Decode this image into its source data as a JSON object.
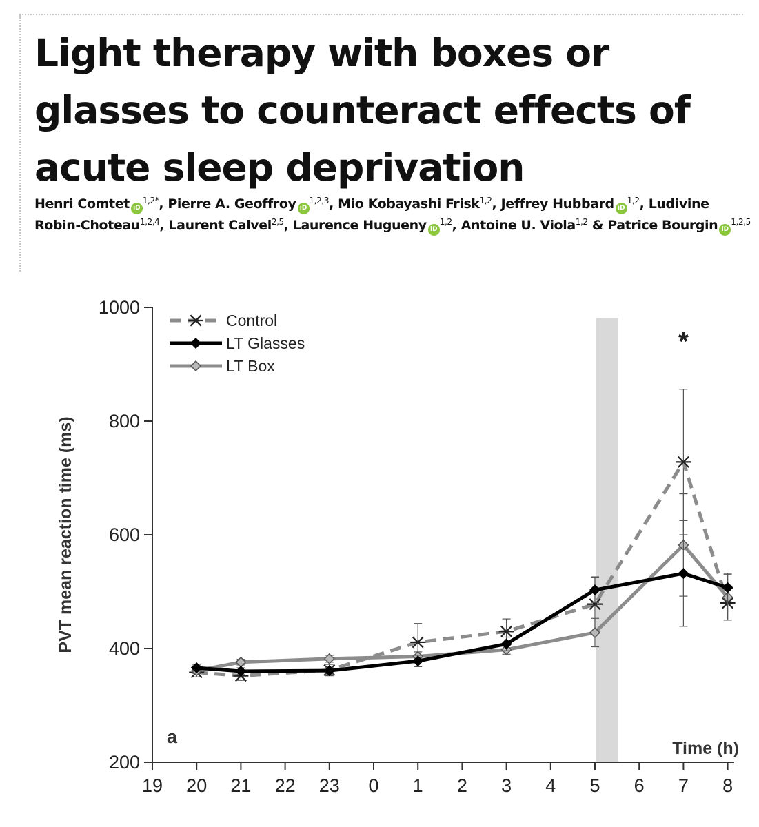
{
  "paper": {
    "title": "Light therapy with boxes or glasses to counteract effects of acute sleep deprivation",
    "orcid_label": "iD",
    "authors": [
      {
        "name": "Henri Comtet",
        "orcid": true,
        "aff": "1,2*",
        "sep": ", "
      },
      {
        "name": "Pierre A. Geoffroy",
        "orcid": true,
        "aff": "1,2,3",
        "sep": ", "
      },
      {
        "name": "Mio Kobayashi Frisk",
        "orcid": false,
        "aff": "1,2",
        "sep": ", "
      },
      {
        "name": "Jeffrey Hubbard",
        "orcid": true,
        "aff": "1,2",
        "sep": ", "
      },
      {
        "name": "Ludivine Robin-Choteau",
        "orcid": false,
        "aff": "1,2,4",
        "sep": ", "
      },
      {
        "name": "Laurent Calvel",
        "orcid": false,
        "aff": "2,5",
        "sep": ", "
      },
      {
        "name": "Laurence Hugueny",
        "orcid": true,
        "aff": "1,2",
        "sep": ", "
      },
      {
        "name": "Antoine U. Viola",
        "orcid": false,
        "aff": "1,2",
        "sep": " & "
      },
      {
        "name": "Patrice Bourgin",
        "orcid": true,
        "aff": "1,2,5",
        "sep": ""
      }
    ]
  },
  "chart_data": {
    "type": "line",
    "panel_label": "a",
    "xlabel": "Time (h)",
    "ylabel": "PVT mean reaction time (ms)",
    "ylim": [
      200,
      1000
    ],
    "yticks": [
      200,
      400,
      600,
      800,
      1000
    ],
    "categories": [
      "19",
      "20",
      "21",
      "22",
      "23",
      "0",
      "1",
      "2",
      "3",
      "4",
      "5",
      "6",
      "7",
      "8"
    ],
    "shaded_band": [
      "5",
      "6"
    ],
    "significance_marker": {
      "x": "7",
      "label": "*"
    },
    "legend_position": "top-left",
    "grid": false,
    "colors": {
      "control": "#8c8c8c",
      "glasses": "#000000",
      "box": "#8c8c8c",
      "band": "#d9d9d9"
    },
    "series": [
      {
        "name": "Control",
        "style": "dashed",
        "marker": "asterisk",
        "x": [
          "20",
          "21",
          "23",
          "1",
          "3",
          "5",
          "7",
          "8"
        ],
        "values": [
          358,
          352,
          362,
          411,
          430,
          478,
          728,
          480
        ],
        "error": [
          8,
          8,
          10,
          33,
          22,
          48,
          128,
          30
        ]
      },
      {
        "name": "LT Glasses",
        "style": "solid",
        "marker": "diamond",
        "x": [
          "20",
          "21",
          "23",
          "1",
          "3",
          "5",
          "7",
          "8"
        ],
        "values": [
          366,
          360,
          361,
          378,
          408,
          503,
          532,
          507
        ],
        "error": [
          5,
          6,
          6,
          10,
          12,
          22,
          93,
          25
        ]
      },
      {
        "name": "LT Box",
        "style": "solid",
        "marker": "diamond",
        "x": [
          "20",
          "21",
          "23",
          "1",
          "3",
          "5",
          "7",
          "8"
        ],
        "values": [
          361,
          376,
          382,
          386,
          398,
          428,
          582,
          490
        ],
        "error": [
          5,
          5,
          6,
          8,
          8,
          25,
          90,
          40
        ]
      }
    ]
  }
}
